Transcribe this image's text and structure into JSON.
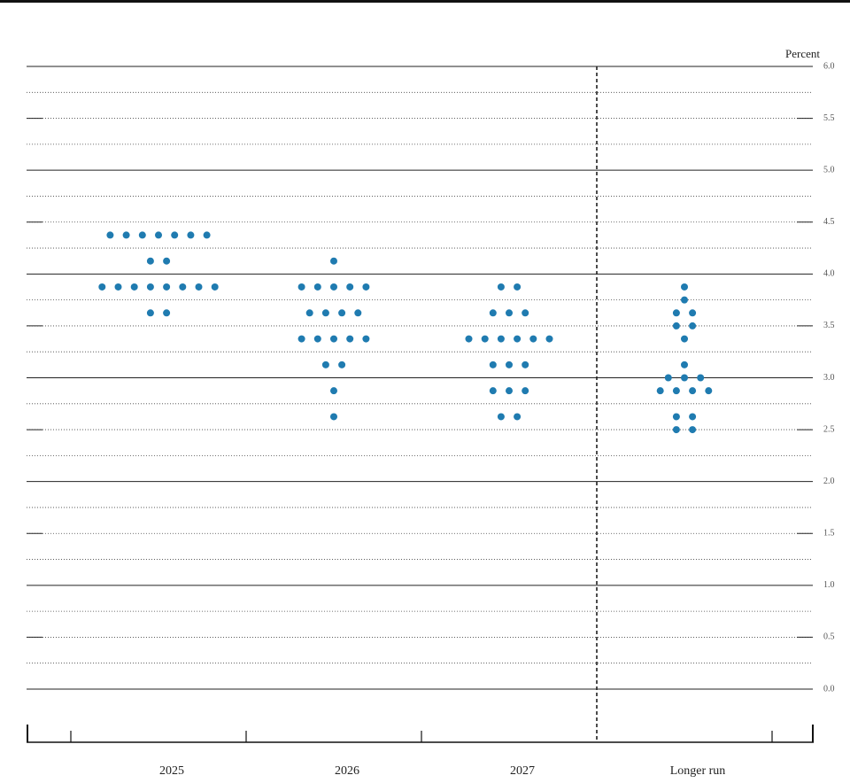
{
  "chart_data": {
    "type": "dot",
    "y_label": "Percent",
    "categories": [
      "2025",
      "2026",
      "2027",
      "Longer run"
    ],
    "color": "#1f7bb0",
    "dots": [
      [
        4.375,
        4.375,
        4.375,
        4.375,
        4.375,
        4.375,
        4.375,
        4.125,
        4.125,
        3.875,
        3.875,
        3.875,
        3.875,
        3.875,
        3.875,
        3.875,
        3.875,
        3.625,
        3.625
      ],
      [
        4.125,
        3.875,
        3.875,
        3.875,
        3.875,
        3.875,
        3.625,
        3.625,
        3.625,
        3.625,
        3.375,
        3.375,
        3.375,
        3.375,
        3.375,
        3.125,
        3.125,
        2.875,
        2.625
      ],
      [
        3.875,
        3.875,
        3.625,
        3.625,
        3.625,
        3.375,
        3.375,
        3.375,
        3.375,
        3.375,
        3.375,
        3.125,
        3.125,
        3.125,
        2.875,
        2.875,
        2.875,
        2.625,
        2.625
      ],
      [
        3.875,
        3.75,
        3.625,
        3.625,
        3.5,
        3.5,
        3.375,
        3.125,
        3.0,
        3.0,
        3.0,
        2.875,
        2.875,
        2.875,
        2.875,
        2.625,
        2.625,
        2.5,
        2.5
      ]
    ],
    "ylim": [
      0,
      6
    ],
    "yticks": [
      {
        "value": 0,
        "label": "0.0"
      },
      {
        "value": 0.5,
        "label": "0.5"
      },
      {
        "value": 1,
        "label": "1.0"
      },
      {
        "value": 1.5,
        "label": "1.5"
      },
      {
        "value": 2,
        "label": "2.0"
      },
      {
        "value": 2.5,
        "label": "2.5"
      },
      {
        "value": 3,
        "label": "3.0"
      },
      {
        "value": 3.5,
        "label": "3.5"
      },
      {
        "value": 4,
        "label": "4.0"
      },
      {
        "value": 4.5,
        "label": "4.5"
      },
      {
        "value": 5,
        "label": "5.0"
      },
      {
        "value": 5.5,
        "label": "5.5"
      },
      {
        "value": 6,
        "label": "6.0"
      }
    ],
    "yticks_minor": [
      0.25,
      0.75,
      1.25,
      1.75,
      2.25,
      2.75,
      3.25,
      3.75,
      4.25,
      4.75,
      5.25,
      5.75
    ],
    "grid": true
  }
}
